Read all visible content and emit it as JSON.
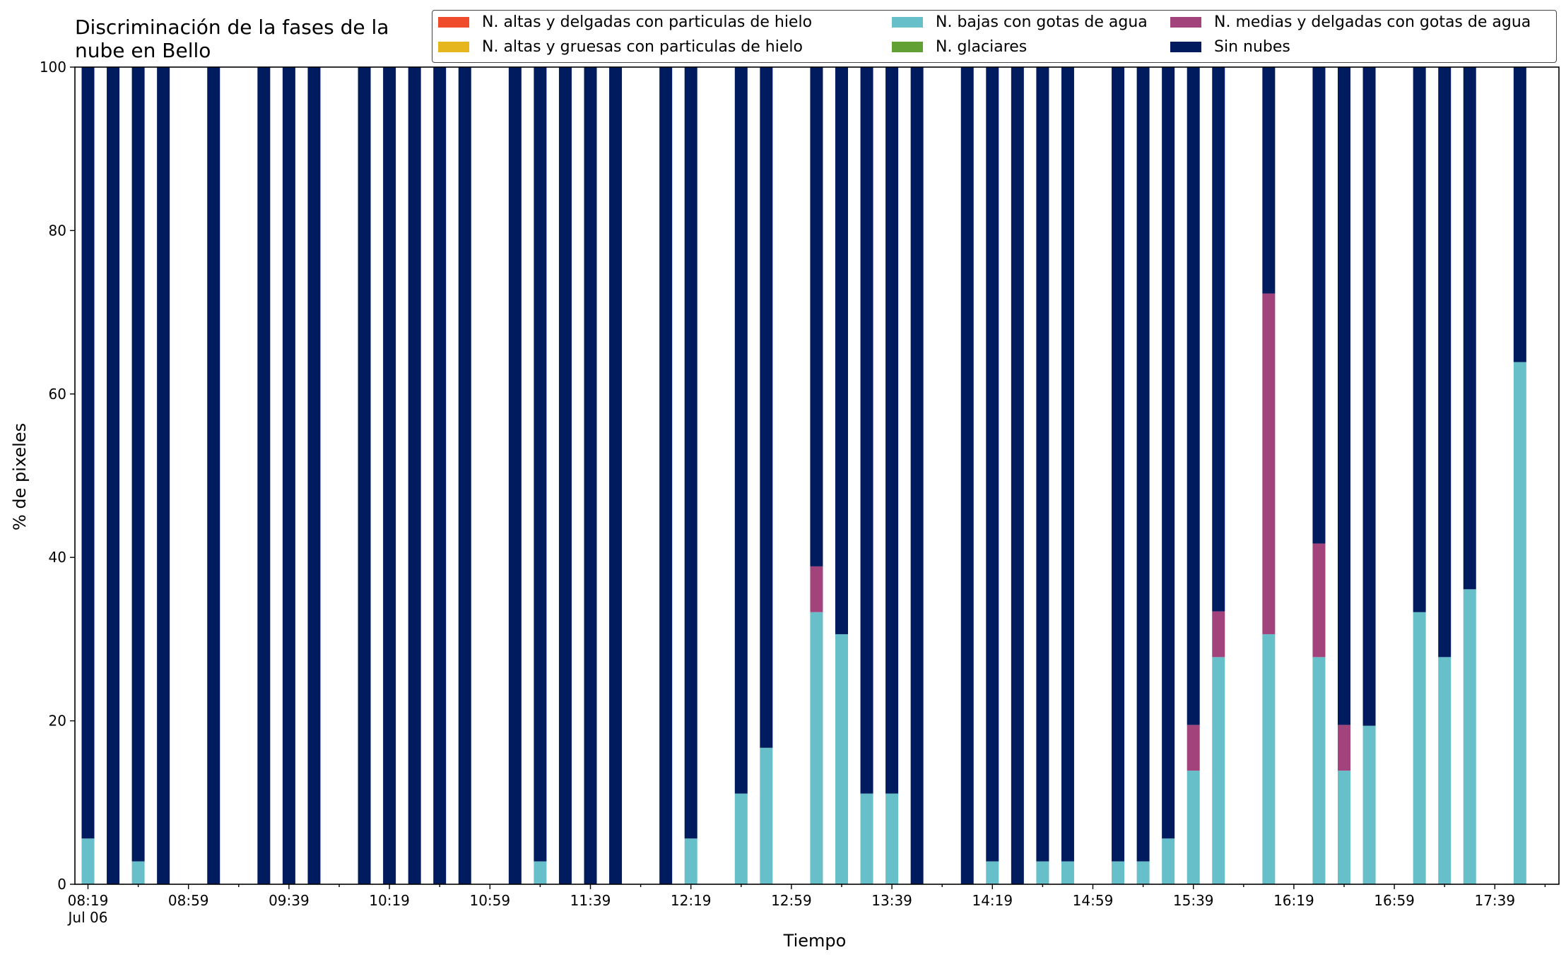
{
  "chart_data": {
    "type": "bar",
    "stacked": true,
    "title": "Discriminación de la fases de la nube en Bello",
    "xlabel": "Tiempo",
    "ylabel": "% de pixeles",
    "ylim": [
      0,
      100
    ],
    "yticks": [
      "0",
      "20",
      "40",
      "60",
      "80",
      "100"
    ],
    "xtick_labels": [
      "08:19",
      "08:59",
      "09:39",
      "10:19",
      "10:59",
      "11:39",
      "12:19",
      "12:59",
      "13:39",
      "14:19",
      "14:59",
      "15:39",
      "16:19",
      "16:59",
      "17:39"
    ],
    "xtick_sublabel": "Jul 06",
    "legend_position": "top-right",
    "legend": [
      {
        "name": "N. altas y delgadas con particulas de hielo",
        "color": "#ee4c2c"
      },
      {
        "name": "N. altas y gruesas con particulas de hielo",
        "color": "#e6b61e"
      },
      {
        "name": "N. bajas con gotas de agua",
        "color": "#67bfca"
      },
      {
        "name": "N. glaciares",
        "color": "#60a034"
      },
      {
        "name": "N. medias y delgadas con gotas de agua",
        "color": "#a3437c"
      },
      {
        "name": "Sin nubes",
        "color": "#001c5e"
      }
    ],
    "x_slots": 59,
    "bars": [
      {
        "slot": 0,
        "bajas": 5.6,
        "medias": 0
      },
      {
        "slot": 1,
        "bajas": 0,
        "medias": 0
      },
      {
        "slot": 2,
        "bajas": 2.8,
        "medias": 0
      },
      {
        "slot": 3,
        "bajas": 0,
        "medias": 0
      },
      {
        "slot": 5,
        "bajas": 0,
        "medias": 0
      },
      {
        "slot": 7,
        "bajas": 0,
        "medias": 0
      },
      {
        "slot": 8,
        "bajas": 0,
        "medias": 0
      },
      {
        "slot": 9,
        "bajas": 0,
        "medias": 0
      },
      {
        "slot": 11,
        "bajas": 0,
        "medias": 0
      },
      {
        "slot": 12,
        "bajas": 0,
        "medias": 0
      },
      {
        "slot": 13,
        "bajas": 0,
        "medias": 0
      },
      {
        "slot": 14,
        "bajas": 0,
        "medias": 0
      },
      {
        "slot": 15,
        "bajas": 0,
        "medias": 0
      },
      {
        "slot": 17,
        "bajas": 0,
        "medias": 0
      },
      {
        "slot": 18,
        "bajas": 2.8,
        "medias": 0
      },
      {
        "slot": 19,
        "bajas": 0,
        "medias": 0
      },
      {
        "slot": 20,
        "bajas": 0,
        "medias": 0
      },
      {
        "slot": 21,
        "bajas": 0,
        "medias": 0
      },
      {
        "slot": 23,
        "bajas": 0,
        "medias": 0
      },
      {
        "slot": 24,
        "bajas": 5.6,
        "medias": 0
      },
      {
        "slot": 26,
        "bajas": 11.1,
        "medias": 0
      },
      {
        "slot": 27,
        "bajas": 16.7,
        "medias": 0
      },
      {
        "slot": 29,
        "bajas": 33.3,
        "medias": 5.6
      },
      {
        "slot": 30,
        "bajas": 30.6,
        "medias": 0
      },
      {
        "slot": 31,
        "bajas": 11.1,
        "medias": 0
      },
      {
        "slot": 32,
        "bajas": 11.1,
        "medias": 0
      },
      {
        "slot": 33,
        "bajas": 0,
        "medias": 0
      },
      {
        "slot": 35,
        "bajas": 0,
        "medias": 0
      },
      {
        "slot": 36,
        "bajas": 2.8,
        "medias": 0
      },
      {
        "slot": 37,
        "bajas": 0,
        "medias": 0
      },
      {
        "slot": 38,
        "bajas": 2.8,
        "medias": 0
      },
      {
        "slot": 39,
        "bajas": 2.8,
        "medias": 0
      },
      {
        "slot": 41,
        "bajas": 2.8,
        "medias": 0
      },
      {
        "slot": 42,
        "bajas": 2.8,
        "medias": 0
      },
      {
        "slot": 43,
        "bajas": 5.6,
        "medias": 0
      },
      {
        "slot": 44,
        "bajas": 13.9,
        "medias": 5.6
      },
      {
        "slot": 45,
        "bajas": 27.8,
        "medias": 5.6
      },
      {
        "slot": 47,
        "bajas": 30.6,
        "medias": 41.7
      },
      {
        "slot": 49,
        "bajas": 27.8,
        "medias": 13.9
      },
      {
        "slot": 50,
        "bajas": 13.9,
        "medias": 5.6
      },
      {
        "slot": 51,
        "bajas": 19.4,
        "medias": 0
      },
      {
        "slot": 53,
        "bajas": 33.3,
        "medias": 0
      },
      {
        "slot": 54,
        "bajas": 27.8,
        "medias": 0
      },
      {
        "slot": 55,
        "bajas": 36.1,
        "medias": 0
      },
      {
        "slot": 57,
        "bajas": 63.9,
        "medias": 0
      }
    ]
  }
}
